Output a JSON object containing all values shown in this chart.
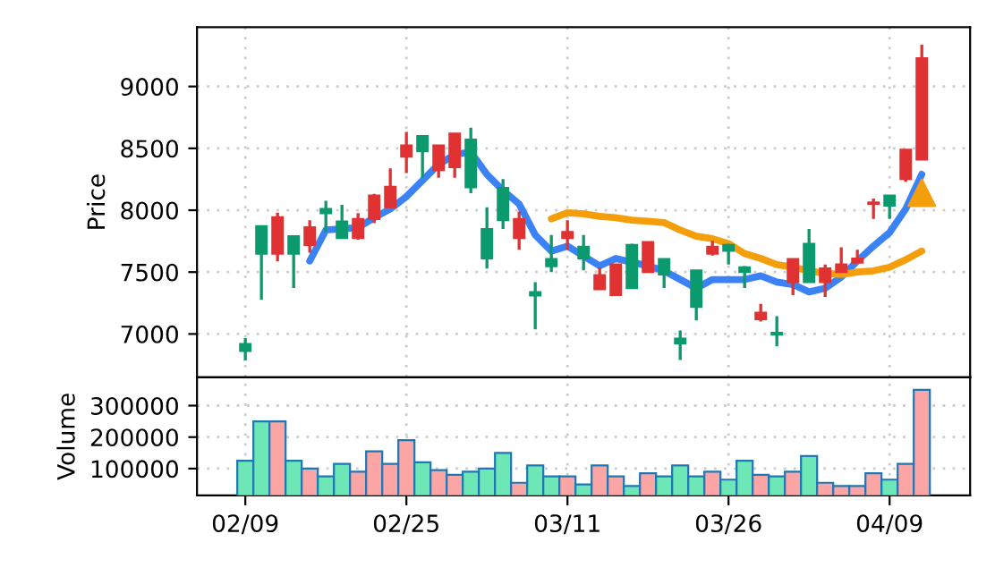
{
  "chart_data": [
    {
      "type": "candlestick",
      "ylabel": "Price",
      "tick_labels": "y",
      "grid": true,
      "categories": [
        null,
        null,
        null,
        null,
        null,
        null,
        null,
        null,
        null,
        null,
        null,
        null,
        null,
        null,
        null,
        null,
        null,
        null,
        null,
        null,
        null,
        null,
        null,
        null,
        null,
        null,
        null,
        null,
        null,
        null,
        null,
        null,
        null,
        null,
        null,
        null,
        null,
        null,
        null,
        null,
        null,
        null,
        null
      ],
      "ohlc": [
        [
          6919,
          6967,
          6786,
          6862
        ],
        [
          7871,
          7871,
          7276,
          7648
        ],
        [
          7648,
          7981,
          7586,
          7943
        ],
        [
          7790,
          7790,
          7372,
          7648
        ],
        [
          7719,
          7919,
          7657,
          7862
        ],
        [
          8010,
          8076,
          7824,
          7976
        ],
        [
          7910,
          8043,
          7776,
          7776
        ],
        [
          7776,
          7976,
          7762,
          7929
        ],
        [
          7929,
          8133,
          7895,
          8119
        ],
        [
          8024,
          8338,
          8014,
          8190
        ],
        [
          8433,
          8633,
          8300,
          8524
        ],
        [
          8600,
          8600,
          8262,
          8476
        ],
        [
          8324,
          8524,
          8262,
          8524
        ],
        [
          8348,
          8619,
          8262,
          8619
        ],
        [
          8571,
          8667,
          8138,
          8186
        ],
        [
          7848,
          8024,
          7529,
          7610
        ],
        [
          8181,
          8252,
          7848,
          7919
        ],
        [
          7776,
          7990,
          7681,
          7929
        ],
        [
          7338,
          7419,
          7038,
          7310
        ],
        [
          7605,
          7800,
          7500,
          7548
        ],
        [
          7776,
          7919,
          7681,
          7824
        ],
        [
          7705,
          7800,
          7514,
          7610
        ],
        [
          7362,
          7538,
          7362,
          7476
        ],
        [
          7314,
          7562,
          7314,
          7562
        ],
        [
          7719,
          7729,
          7371,
          7371
        ],
        [
          7500,
          7743,
          7500,
          7743
        ],
        [
          7605,
          7605,
          7372,
          7481
        ],
        [
          6962,
          7029,
          6790,
          6924
        ],
        [
          7514,
          7514,
          7110,
          7219
        ],
        [
          7648,
          7752,
          7633,
          7705
        ],
        [
          7719,
          7729,
          7562,
          7672
        ],
        [
          7538,
          7548,
          7372,
          7500
        ],
        [
          7119,
          7243,
          7100,
          7171
        ],
        [
          7010,
          7143,
          6900,
          6995
        ],
        [
          7419,
          7605,
          7314,
          7605
        ],
        [
          7729,
          7848,
          7419,
          7419
        ],
        [
          7419,
          7562,
          7300,
          7529
        ],
        [
          7500,
          7700,
          7500,
          7562
        ],
        [
          7576,
          7681,
          7576,
          7610
        ],
        [
          8052,
          8095,
          7929,
          8062
        ],
        [
          8119,
          8119,
          7929,
          8038
        ],
        [
          8252,
          8490,
          8229,
          8490
        ],
        [
          8409,
          9338,
          8409,
          9229
        ]
      ],
      "colors": [
        "#0b9a6d",
        "#0b9a6d",
        "#e03232",
        "#0b9a6d",
        "#e03232",
        "#0b9a6d",
        "#0b9a6d",
        "#e03232",
        "#e03232",
        "#e03232",
        "#e03232",
        "#0b9a6d",
        "#e03232",
        "#e03232",
        "#0b9a6d",
        "#0b9a6d",
        "#0b9a6d",
        "#e03232",
        "#0b9a6d",
        "#0b9a6d",
        "#e03232",
        "#0b9a6d",
        "#e03232",
        "#e03232",
        "#0b9a6d",
        "#e03232",
        "#0b9a6d",
        "#0b9a6d",
        "#0b9a6d",
        "#e03232",
        "#0b9a6d",
        "#0b9a6d",
        "#e03232",
        "#0b9a6d",
        "#e03232",
        "#0b9a6d",
        "#e03232",
        "#e03232",
        "#e03232",
        "#e03232",
        "#0b9a6d",
        "#e03232",
        "#e03232"
      ],
      "series": [
        {
          "type": "line",
          "color": "#3b82f6",
          "values": [
            null,
            null,
            null,
            null,
            7590,
            7840,
            7850,
            7860,
            7940,
            8010,
            8110,
            8240,
            8370,
            8450,
            8470,
            8290,
            8160,
            8050,
            7800,
            7670,
            7710,
            7630,
            7550,
            7610,
            7580,
            7550,
            7510,
            7440,
            7370,
            7440,
            7440,
            7440,
            7470,
            7420,
            7400,
            7340,
            7370,
            7460,
            7590,
            7710,
            7820,
            8010,
            8290
          ]
        },
        {
          "type": "line",
          "color": "#f59e0b",
          "values": [
            null,
            null,
            null,
            null,
            null,
            null,
            null,
            null,
            null,
            null,
            null,
            null,
            null,
            null,
            null,
            null,
            null,
            null,
            null,
            7930,
            7980,
            7970,
            7950,
            7940,
            7920,
            7910,
            7900,
            7840,
            7790,
            7770,
            7730,
            7650,
            7610,
            7560,
            7540,
            7510,
            7490,
            7480,
            7500,
            7510,
            7540,
            7600,
            7670
          ]
        },
        {
          "type": "scatter",
          "color": "#f59e0b",
          "marker": "triangle",
          "values": [
            null,
            null,
            null,
            null,
            null,
            null,
            null,
            null,
            null,
            null,
            null,
            null,
            null,
            null,
            null,
            null,
            null,
            null,
            null,
            null,
            null,
            null,
            null,
            null,
            null,
            null,
            null,
            null,
            null,
            null,
            null,
            null,
            null,
            null,
            null,
            null,
            null,
            null,
            null,
            null,
            null,
            null,
            8140
          ]
        }
      ],
      "ylim": [
        6650,
        9480
      ],
      "yticks": [
        7000,
        7500,
        8000,
        8500,
        9000
      ]
    },
    {
      "type": "bar",
      "ylabel": "Volume",
      "grid": true,
      "categories": [
        "02/09",
        null,
        null,
        null,
        null,
        null,
        null,
        null,
        null,
        null,
        "02/25",
        null,
        null,
        null,
        null,
        null,
        null,
        null,
        null,
        null,
        "03/11",
        null,
        null,
        null,
        null,
        null,
        null,
        null,
        null,
        null,
        "03/26",
        null,
        null,
        null,
        null,
        null,
        null,
        null,
        null,
        null,
        "04/09",
        null,
        null
      ],
      "values": [
        125000,
        250000,
        250000,
        125000,
        100000,
        75000,
        115000,
        90000,
        155000,
        115000,
        190000,
        120000,
        95000,
        80000,
        90000,
        100000,
        150000,
        55000,
        110000,
        75000,
        75000,
        50000,
        110000,
        75000,
        45000,
        85000,
        75000,
        110000,
        75000,
        90000,
        65000,
        125000,
        80000,
        75000,
        90000,
        140000,
        55000,
        45000,
        45000,
        85000,
        65000,
        115000,
        350000
      ],
      "colors": [
        "#6ee7b7",
        "#6ee7b7",
        "#fca5a5",
        "#6ee7b7",
        "#fca5a5",
        "#6ee7b7",
        "#6ee7b7",
        "#fca5a5",
        "#fca5a5",
        "#fca5a5",
        "#fca5a5",
        "#6ee7b7",
        "#fca5a5",
        "#fca5a5",
        "#6ee7b7",
        "#6ee7b7",
        "#6ee7b7",
        "#fca5a5",
        "#6ee7b7",
        "#6ee7b7",
        "#fca5a5",
        "#6ee7b7",
        "#fca5a5",
        "#fca5a5",
        "#6ee7b7",
        "#fca5a5",
        "#6ee7b7",
        "#6ee7b7",
        "#6ee7b7",
        "#fca5a5",
        "#6ee7b7",
        "#6ee7b7",
        "#fca5a5",
        "#6ee7b7",
        "#fca5a5",
        "#6ee7b7",
        "#fca5a5",
        "#fca5a5",
        "#fca5a5",
        "#fca5a5",
        "#6ee7b7",
        "#fca5a5",
        "#fca5a5"
      ],
      "ylim": [
        15000,
        390000
      ],
      "yticks": [
        100000,
        200000,
        300000
      ]
    }
  ]
}
